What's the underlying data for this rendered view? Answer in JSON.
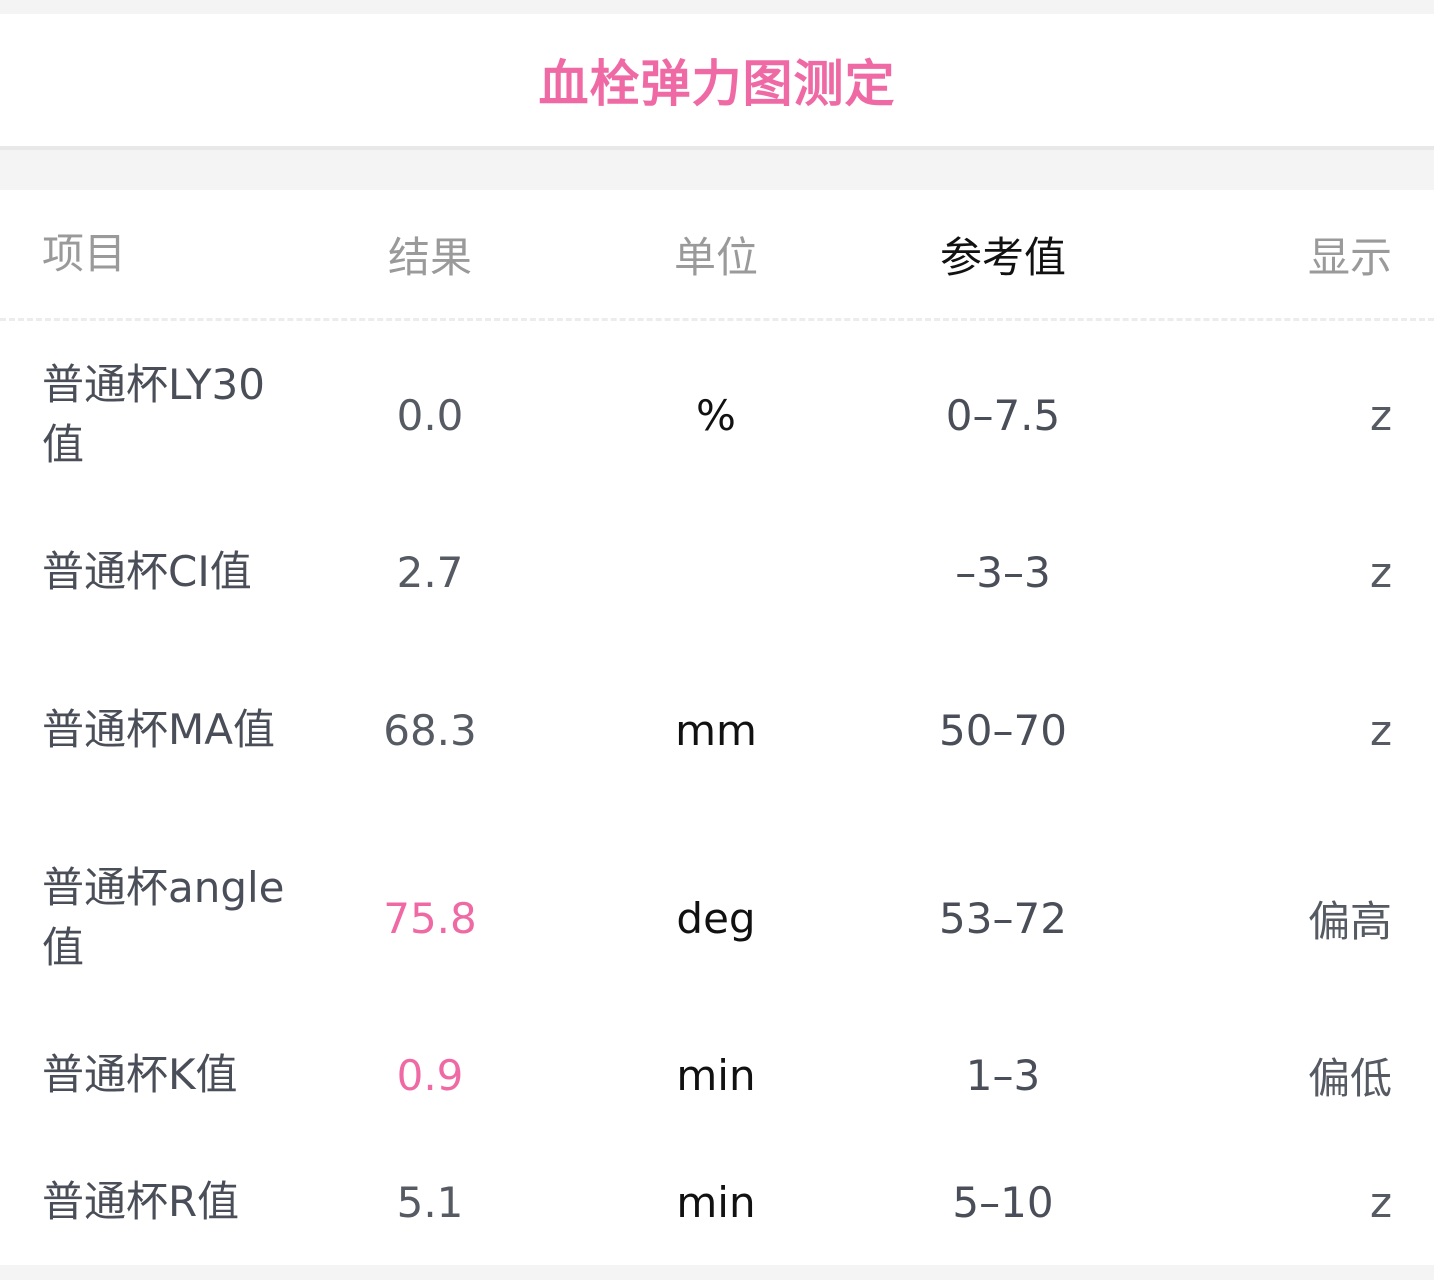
{
  "title": "血栓弹力图测定",
  "accent_color": "#ef6aa5",
  "headers": [
    "项目",
    "结果",
    "单位",
    "参考值",
    "显示"
  ],
  "rows": [
    {
      "item": "普通杯LY30值",
      "result": "0.0",
      "unit": "%",
      "reference": "0–7.5",
      "display": "z",
      "abnormal": false
    },
    {
      "item": "普通杯CI值",
      "result": "2.7",
      "unit": "",
      "reference": "–3–3",
      "display": "z",
      "abnormal": false
    },
    {
      "item": "普通杯MA值",
      "result": "68.3",
      "unit": "mm",
      "reference": "50–70",
      "display": "z",
      "abnormal": false
    },
    {
      "item": "普通杯angle值",
      "result": "75.8",
      "unit": "deg",
      "reference": "53–72",
      "display": "偏高",
      "abnormal": true
    },
    {
      "item": "普通杯K值",
      "result": "0.9",
      "unit": "min",
      "reference": "1–3",
      "display": "偏低",
      "abnormal": true
    },
    {
      "item": "普通杯R值",
      "result": "5.1",
      "unit": "min",
      "reference": "5–10",
      "display": "z",
      "abnormal": false
    }
  ]
}
